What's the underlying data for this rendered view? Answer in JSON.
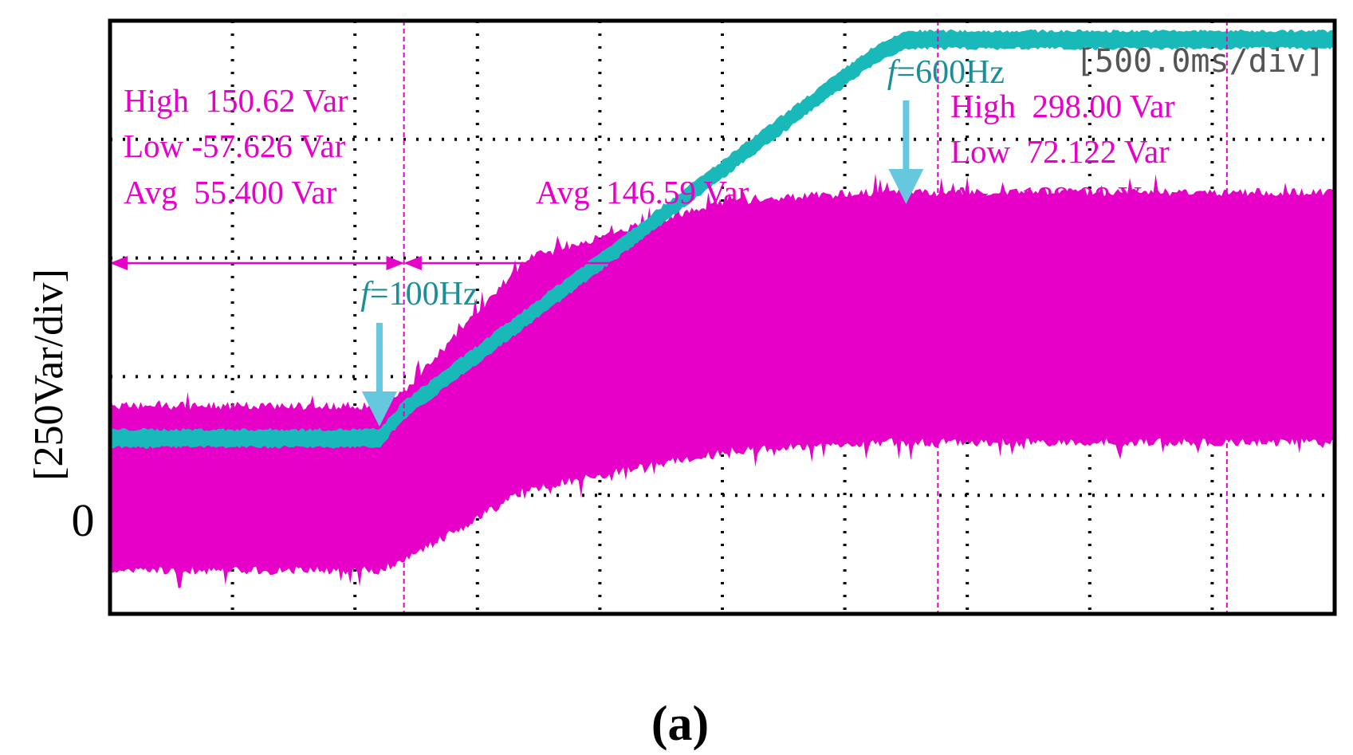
{
  "colors": {
    "magenta": "#e600c8",
    "cyan": "#19b9b9",
    "arrow": "#66c8de",
    "cyan_text": "#1a8f99",
    "frame": "#000000",
    "grid": "#000000"
  },
  "chart_data": {
    "type": "line",
    "title": "",
    "xlabel": "",
    "ylabel": "[250Var/div]",
    "time_scale_label": "[500.0ms/div]",
    "zero_label": "0",
    "y_units": "Var",
    "ms_per_div": 500,
    "var_per_div": 250,
    "x_divisions": 10,
    "y_divisions": 5,
    "xlim_ms": [
      0,
      5000
    ],
    "ylim_var": [
      -250,
      1000
    ],
    "grid": "dotted",
    "caption": "(a)",
    "series": [
      {
        "name": "",
        "color": "#19b9b9",
        "style": "thick band",
        "x_ms": [
          0,
          1100,
          1200,
          3100,
          3250,
          5000
        ],
        "y_var": [
          120,
          120,
          180,
          920,
          960,
          960
        ],
        "band_var": 30
      },
      {
        "name": "",
        "color": "#e600c8",
        "style": "noisy envelope",
        "x_ms": [
          0,
          1100,
          1200,
          1700,
          2500,
          3100,
          5000
        ],
        "high_var": [
          180,
          180,
          210,
          490,
          610,
          630,
          630
        ],
        "low_var": [
          -150,
          -150,
          -130,
          20,
          100,
          120,
          120
        ]
      }
    ],
    "markers": [
      {
        "label": "f=100Hz",
        "f_label": "f",
        "rest": "=100Hz",
        "x_ms": 1100
      },
      {
        "label": "f=600Hz",
        "f_label": "f",
        "rest": "=600Hz",
        "x_ms": 3250
      }
    ],
    "cursors_ms": [
      1200,
      3380,
      4560
    ],
    "measurement_spans": [
      {
        "x_start_ms": 0,
        "x_end_ms": 1200
      },
      {
        "x_start_ms": 1200,
        "x_end_ms": 3380
      },
      {
        "x_start_ms": 3380,
        "x_end_ms": 4560
      }
    ],
    "measurements": [
      {
        "high": "High  150.62 Var",
        "low": "Low -57.626 Var",
        "avg": "Avg  55.400 Var"
      },
      {
        "avg": "Avg  146.59 Var"
      },
      {
        "high": "High  298.00 Var",
        "low": "Low  72.122 Var",
        "avg": "Avg  189.08 Var"
      }
    ]
  }
}
